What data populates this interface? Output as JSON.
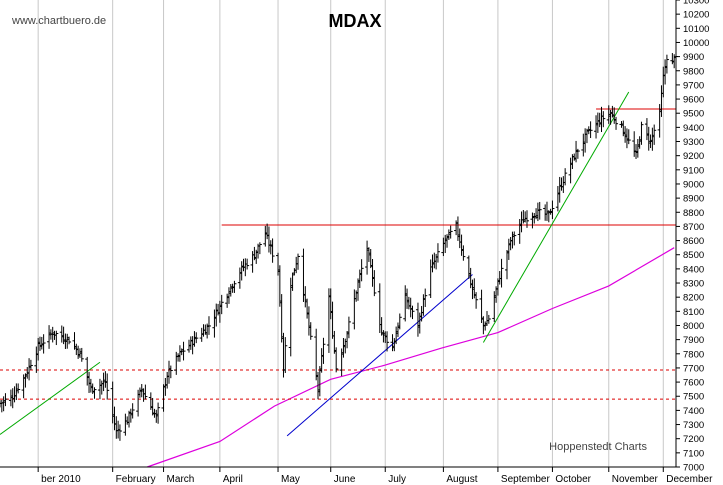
{
  "chart_data": {
    "type": "ohlc",
    "title": "MDAX",
    "watermark": "www.chartbuero.de",
    "credit": "Hoppenstedt Charts",
    "xlabel": "",
    "ylabel": "",
    "ylim": [
      7000,
      10300
    ],
    "ytick_step": 100,
    "y_axis_side": "right",
    "grid": "vertical gridlines at month starts",
    "x_range": [
      "2009-12-01",
      "2010-12-08"
    ],
    "month_labels": [
      {
        "label": "ber 2010",
        "date": "2009-12-22"
      },
      {
        "label": "February",
        "date": "2010-02-01"
      },
      {
        "label": "March",
        "date": "2010-03-01"
      },
      {
        "label": "April",
        "date": "2010-04-01"
      },
      {
        "label": "May",
        "date": "2010-05-03"
      },
      {
        "label": "June",
        "date": "2010-06-01"
      },
      {
        "label": "July",
        "date": "2010-07-01"
      },
      {
        "label": "August",
        "date": "2010-08-02"
      },
      {
        "label": "September",
        "date": "2010-09-01"
      },
      {
        "label": "October",
        "date": "2010-10-01"
      },
      {
        "label": "November",
        "date": "2010-11-01"
      },
      {
        "label": "December",
        "date": "2010-12-01"
      }
    ],
    "price_waypoints": [
      {
        "date": "2009-12-01",
        "close": 7450
      },
      {
        "date": "2009-12-08",
        "close": 7500
      },
      {
        "date": "2009-12-15",
        "close": 7650
      },
      {
        "date": "2009-12-22",
        "close": 7850
      },
      {
        "date": "2009-12-30",
        "close": 7950
      },
      {
        "date": "2010-01-08",
        "close": 7900
      },
      {
        "date": "2010-01-14",
        "close": 7800
      },
      {
        "date": "2010-01-20",
        "close": 7550
      },
      {
        "date": "2010-01-28",
        "close": 7600
      },
      {
        "date": "2010-02-03",
        "close": 7250
      },
      {
        "date": "2010-02-09",
        "close": 7330
      },
      {
        "date": "2010-02-17",
        "close": 7550
      },
      {
        "date": "2010-02-25",
        "close": 7350
      },
      {
        "date": "2010-03-03",
        "close": 7650
      },
      {
        "date": "2010-03-10",
        "close": 7800
      },
      {
        "date": "2010-03-18",
        "close": 7900
      },
      {
        "date": "2010-03-26",
        "close": 8000
      },
      {
        "date": "2010-04-06",
        "close": 8250
      },
      {
        "date": "2010-04-13",
        "close": 8400
      },
      {
        "date": "2010-04-20",
        "close": 8500
      },
      {
        "date": "2010-04-26",
        "close": 8650
      },
      {
        "date": "2010-05-03",
        "close": 8400
      },
      {
        "date": "2010-05-06",
        "close": 7700
      },
      {
        "date": "2010-05-10",
        "close": 8300
      },
      {
        "date": "2010-05-14",
        "close": 8500
      },
      {
        "date": "2010-05-21",
        "close": 7900
      },
      {
        "date": "2010-05-25",
        "close": 7550
      },
      {
        "date": "2010-05-31",
        "close": 8200
      },
      {
        "date": "2010-06-04",
        "close": 7700
      },
      {
        "date": "2010-06-10",
        "close": 7950
      },
      {
        "date": "2010-06-16",
        "close": 8300
      },
      {
        "date": "2010-06-21",
        "close": 8550
      },
      {
        "date": "2010-06-29",
        "close": 7950
      },
      {
        "date": "2010-07-05",
        "close": 7850
      },
      {
        "date": "2010-07-12",
        "close": 8200
      },
      {
        "date": "2010-07-19",
        "close": 8000
      },
      {
        "date": "2010-07-26",
        "close": 8400
      },
      {
        "date": "2010-08-03",
        "close": 8600
      },
      {
        "date": "2010-08-09",
        "close": 8700
      },
      {
        "date": "2010-08-13",
        "close": 8500
      },
      {
        "date": "2010-08-17",
        "close": 8300
      },
      {
        "date": "2010-08-24",
        "close": 8000
      },
      {
        "date": "2010-08-27",
        "close": 8050
      },
      {
        "date": "2010-09-02",
        "close": 8350
      },
      {
        "date": "2010-09-08",
        "close": 8600
      },
      {
        "date": "2010-09-15",
        "close": 8750
      },
      {
        "date": "2010-09-22",
        "close": 8800
      },
      {
        "date": "2010-09-29",
        "close": 8780
      },
      {
        "date": "2010-10-06",
        "close": 9000
      },
      {
        "date": "2010-10-13",
        "close": 9200
      },
      {
        "date": "2010-10-20",
        "close": 9350
      },
      {
        "date": "2010-10-27",
        "close": 9450
      },
      {
        "date": "2010-11-02",
        "close": 9500
      },
      {
        "date": "2010-11-08",
        "close": 9400
      },
      {
        "date": "2010-11-12",
        "close": 9300
      },
      {
        "date": "2010-11-16",
        "close": 9200
      },
      {
        "date": "2010-11-19",
        "close": 9400
      },
      {
        "date": "2010-11-24",
        "close": 9300
      },
      {
        "date": "2010-11-29",
        "close": 9500
      },
      {
        "date": "2010-12-01",
        "close": 9750
      },
      {
        "date": "2010-12-03",
        "close": 9900
      },
      {
        "date": "2010-12-06",
        "close": 9850
      },
      {
        "date": "2010-12-08",
        "close": 9920
      }
    ],
    "moving_average": {
      "color": "#dd00dd",
      "points": [
        {
          "date": "2010-02-20",
          "value": 7000
        },
        {
          "date": "2010-04-01",
          "value": 7180
        },
        {
          "date": "2010-05-01",
          "value": 7430
        },
        {
          "date": "2010-06-01",
          "value": 7620
        },
        {
          "date": "2010-07-01",
          "value": 7720
        },
        {
          "date": "2010-08-01",
          "value": 7840
        },
        {
          "date": "2010-09-01",
          "value": 7950
        },
        {
          "date": "2010-10-01",
          "value": 8120
        },
        {
          "date": "2010-11-01",
          "value": 8280
        },
        {
          "date": "2010-12-07",
          "value": 8550
        }
      ]
    },
    "horizontal_lines": [
      {
        "value": 8710,
        "style": "solid",
        "color": "#dd0000",
        "from": "2010-04-02"
      },
      {
        "value": 9530,
        "style": "solid",
        "color": "#dd0000",
        "from": "2010-10-25"
      },
      {
        "value": 7685,
        "style": "dashed",
        "color": "#dd0000",
        "from": "2009-12-01"
      },
      {
        "value": 7480,
        "style": "dashed",
        "color": "#dd0000",
        "from": "2009-12-01"
      }
    ],
    "trend_lines": [
      {
        "color": "#00aa00",
        "from": {
          "date": "2009-12-01",
          "value": 7230
        },
        "to": {
          "date": "2010-01-25",
          "value": 7740
        }
      },
      {
        "color": "#0000cc",
        "from": {
          "date": "2010-05-08",
          "value": 7220
        },
        "to": {
          "date": "2010-08-18",
          "value": 8360
        }
      },
      {
        "color": "#00aa00",
        "from": {
          "date": "2010-08-24",
          "value": 7880
        },
        "to": {
          "date": "2010-11-12",
          "value": 9650
        }
      }
    ]
  }
}
